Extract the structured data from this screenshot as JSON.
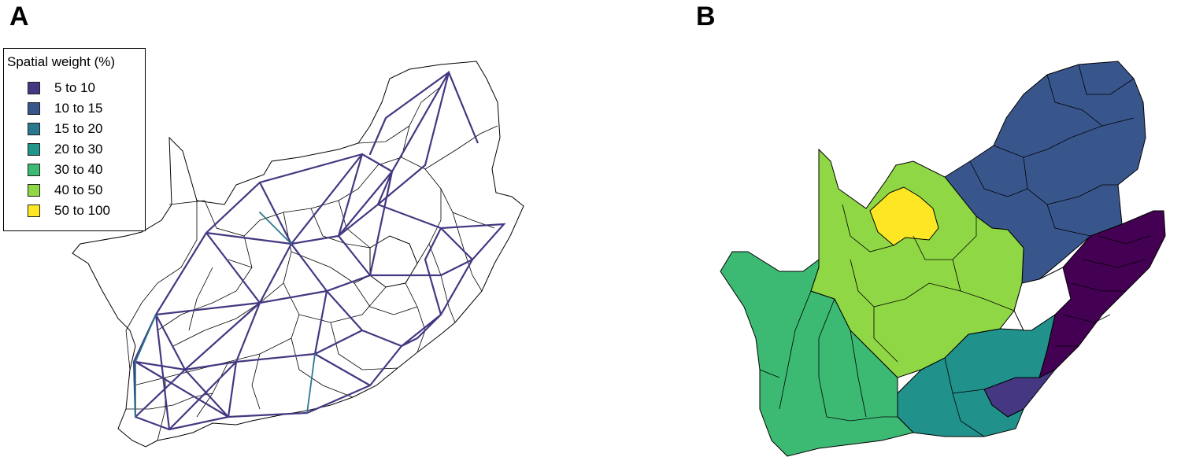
{
  "panels": {
    "a": {
      "letter": "A"
    },
    "b": {
      "letter": "B"
    }
  },
  "legend": {
    "title": "Spatial weight (%)",
    "items": [
      {
        "label": "5 to 10",
        "color": "#453781"
      },
      {
        "label": "10 to 15",
        "color": "#39568c"
      },
      {
        "label": "15 to 20",
        "color": "#2a788e"
      },
      {
        "label": "20 to 30",
        "color": "#20968b"
      },
      {
        "label": "30 to 40",
        "color": "#3cba74"
      },
      {
        "label": "40 to 50",
        "color": "#8fd744"
      },
      {
        "label": "50 to 100",
        "color": "#fde725"
      }
    ]
  },
  "map_b": {
    "regions": [
      {
        "name": "north-east",
        "class": "10 to 15"
      },
      {
        "name": "kwazulu-natal-east",
        "class": "5 to 10"
      },
      {
        "name": "eastern-cape-east",
        "class": "5 to 10"
      },
      {
        "name": "eastern-cape-central",
        "class": "15 to 20"
      },
      {
        "name": "northern-cape-west",
        "class": "30 to 40"
      },
      {
        "name": "northern-cape-central",
        "class": "40 to 50"
      },
      {
        "name": "north-west-central",
        "class": "50 to 100"
      }
    ]
  }
}
